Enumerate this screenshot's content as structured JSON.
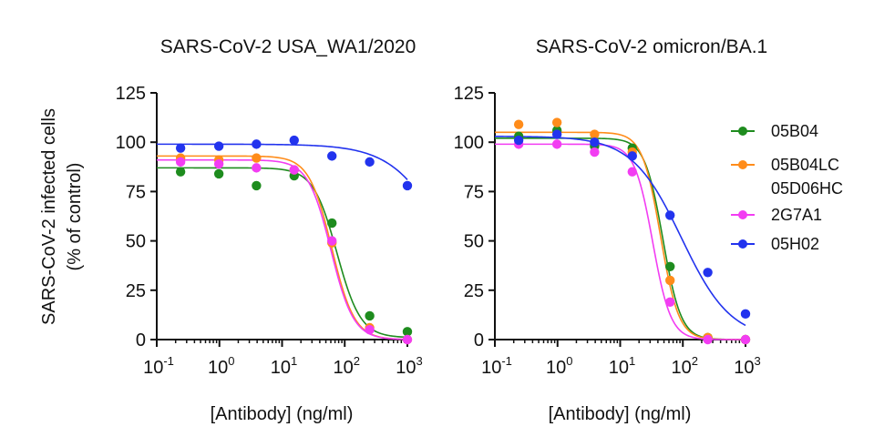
{
  "chart_data": [
    {
      "type": "scatter",
      "title": "SARS-CoV-2 USA_WA1/2020",
      "xlabel": "[Antibody] (ng/ml)",
      "ylabel": "SARS-CoV-2 infected cells",
      "ylabel2": "(% of control)",
      "xscale": "log10",
      "xlim": [
        0.1,
        1000
      ],
      "ylim": [
        0,
        125
      ],
      "xticks": [
        {
          "base": "10",
          "exp": "-1"
        },
        {
          "base": "10",
          "exp": "0"
        },
        {
          "base": "10",
          "exp": "1"
        },
        {
          "base": "10",
          "exp": "2"
        },
        {
          "base": "10",
          "exp": "3"
        }
      ],
      "yticks": [
        "0",
        "25",
        "50",
        "75",
        "100",
        "125"
      ],
      "series": [
        {
          "name": "05B04",
          "color": "#1e8c1e",
          "x": [
            0.24,
            0.98,
            3.9,
            15.6,
            62.5,
            250,
            1000
          ],
          "y": [
            85,
            84,
            78,
            83,
            59,
            12,
            4
          ],
          "fit": {
            "top": 87,
            "bottom": 1,
            "ec50": 75,
            "hill": 2.3
          }
        },
        {
          "name": "05B04LC 05D06HC",
          "color": "#ff8c1a",
          "x": [
            0.24,
            0.98,
            3.9,
            15.6,
            62.5,
            250,
            1000
          ],
          "y": [
            92,
            91,
            92,
            86,
            49,
            6,
            0
          ],
          "fit": {
            "top": 93,
            "bottom": 0,
            "ec50": 62,
            "hill": 2.4
          }
        },
        {
          "name": "2G7A1",
          "color": "#f23df2",
          "x": [
            0.24,
            0.98,
            3.9,
            15.6,
            62.5,
            250,
            1000
          ],
          "y": [
            90,
            89,
            87,
            86,
            50,
            5,
            0
          ],
          "fit": {
            "top": 91,
            "bottom": 0,
            "ec50": 60,
            "hill": 2.4
          }
        },
        {
          "name": "05H02",
          "color": "#2233ee",
          "x": [
            0.24,
            0.98,
            3.9,
            15.6,
            62.5,
            250,
            1000
          ],
          "y": [
            97,
            98,
            99,
            101,
            93,
            90,
            78
          ],
          "fit": {
            "top": 99,
            "bottom": 0,
            "ec50": 4500,
            "hill": 1.0
          }
        }
      ]
    },
    {
      "type": "scatter",
      "title": "SARS-CoV-2 omicron/BA.1",
      "xlabel": "[Antibody] (ng/ml)",
      "xscale": "log10",
      "xlim": [
        0.1,
        1000
      ],
      "ylim": [
        0,
        125
      ],
      "xticks": [
        {
          "base": "10",
          "exp": "-1"
        },
        {
          "base": "10",
          "exp": "0"
        },
        {
          "base": "10",
          "exp": "1"
        },
        {
          "base": "10",
          "exp": "2"
        },
        {
          "base": "10",
          "exp": "3"
        }
      ],
      "yticks": [
        "0",
        "25",
        "50",
        "75",
        "100",
        "125"
      ],
      "series": [
        {
          "name": "05B04",
          "color": "#1e8c1e",
          "x": [
            0.24,
            0.98,
            3.9,
            15.6,
            62.5,
            250,
            1000
          ],
          "y": [
            103,
            106,
            98,
            97,
            37,
            1,
            0
          ],
          "fit": {
            "top": 102,
            "bottom": 0,
            "ec50": 48,
            "hill": 3.0
          }
        },
        {
          "name": "05B04LC 05D06HC",
          "color": "#ff8c1a",
          "x": [
            0.24,
            0.98,
            3.9,
            15.6,
            62.5,
            250,
            1000
          ],
          "y": [
            109,
            110,
            104,
            95,
            30,
            1,
            0
          ],
          "fit": {
            "top": 105,
            "bottom": 0,
            "ec50": 44,
            "hill": 3.0
          }
        },
        {
          "name": "2G7A1",
          "color": "#f23df2",
          "x": [
            0.24,
            0.98,
            3.9,
            15.6,
            62.5,
            250,
            1000
          ],
          "y": [
            99,
            99,
            95,
            85,
            19,
            0,
            0
          ],
          "fit": {
            "top": 99,
            "bottom": 0,
            "ec50": 33,
            "hill": 3.0
          }
        },
        {
          "name": "05H02",
          "color": "#2233ee",
          "x": [
            0.24,
            0.98,
            3.9,
            15.6,
            62.5,
            250,
            1000
          ],
          "y": [
            101,
            104,
            100,
            93,
            63,
            34,
            13
          ],
          "fit": {
            "top": 103,
            "bottom": 0,
            "ec50": 95,
            "hill": 1.1
          }
        }
      ]
    }
  ],
  "legend": {
    "position": "right",
    "items": [
      {
        "label": "05B04",
        "color": "#1e8c1e"
      },
      {
        "label": "05B04LC",
        "label2": "05D06HC",
        "color": "#ff8c1a"
      },
      {
        "label": "2G7A1",
        "color": "#f23df2"
      },
      {
        "label": "05H02",
        "color": "#2233ee"
      }
    ]
  }
}
